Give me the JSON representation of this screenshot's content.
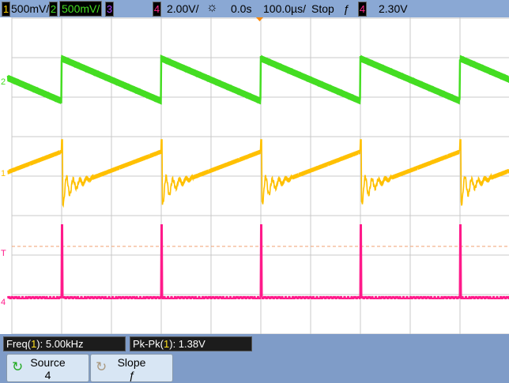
{
  "header": {
    "ch1": {
      "num": "1",
      "scale": "500mV/",
      "color": "#ffd400"
    },
    "ch2": {
      "num": "2",
      "scale": "500mV/",
      "color": "#44dd22"
    },
    "ch3": {
      "num": "3",
      "color": "#aa44ff"
    },
    "ch4": {
      "num": "4",
      "scale": "2.00V/",
      "color": "#ff2a8a"
    },
    "delay": "0.0s",
    "timebase": "100.0µs/",
    "run_state": "Stop",
    "trigger_slope": "ƒ",
    "trigger_source": "4",
    "trigger_level": "2.30V"
  },
  "markers": {
    "ch1": "1",
    "ch2": "2",
    "ch4": "4",
    "trigger": "T"
  },
  "measurements": [
    {
      "label": "Freq(",
      "ch": "1",
      "rest": "): 5.00kHz"
    },
    {
      "label": "Pk-Pk(",
      "ch": "1",
      "rest": "): 1.38V"
    }
  ],
  "softkeys": [
    {
      "label": "Source",
      "value": "4"
    },
    {
      "label": "Slope",
      "value": "ƒ"
    }
  ]
}
